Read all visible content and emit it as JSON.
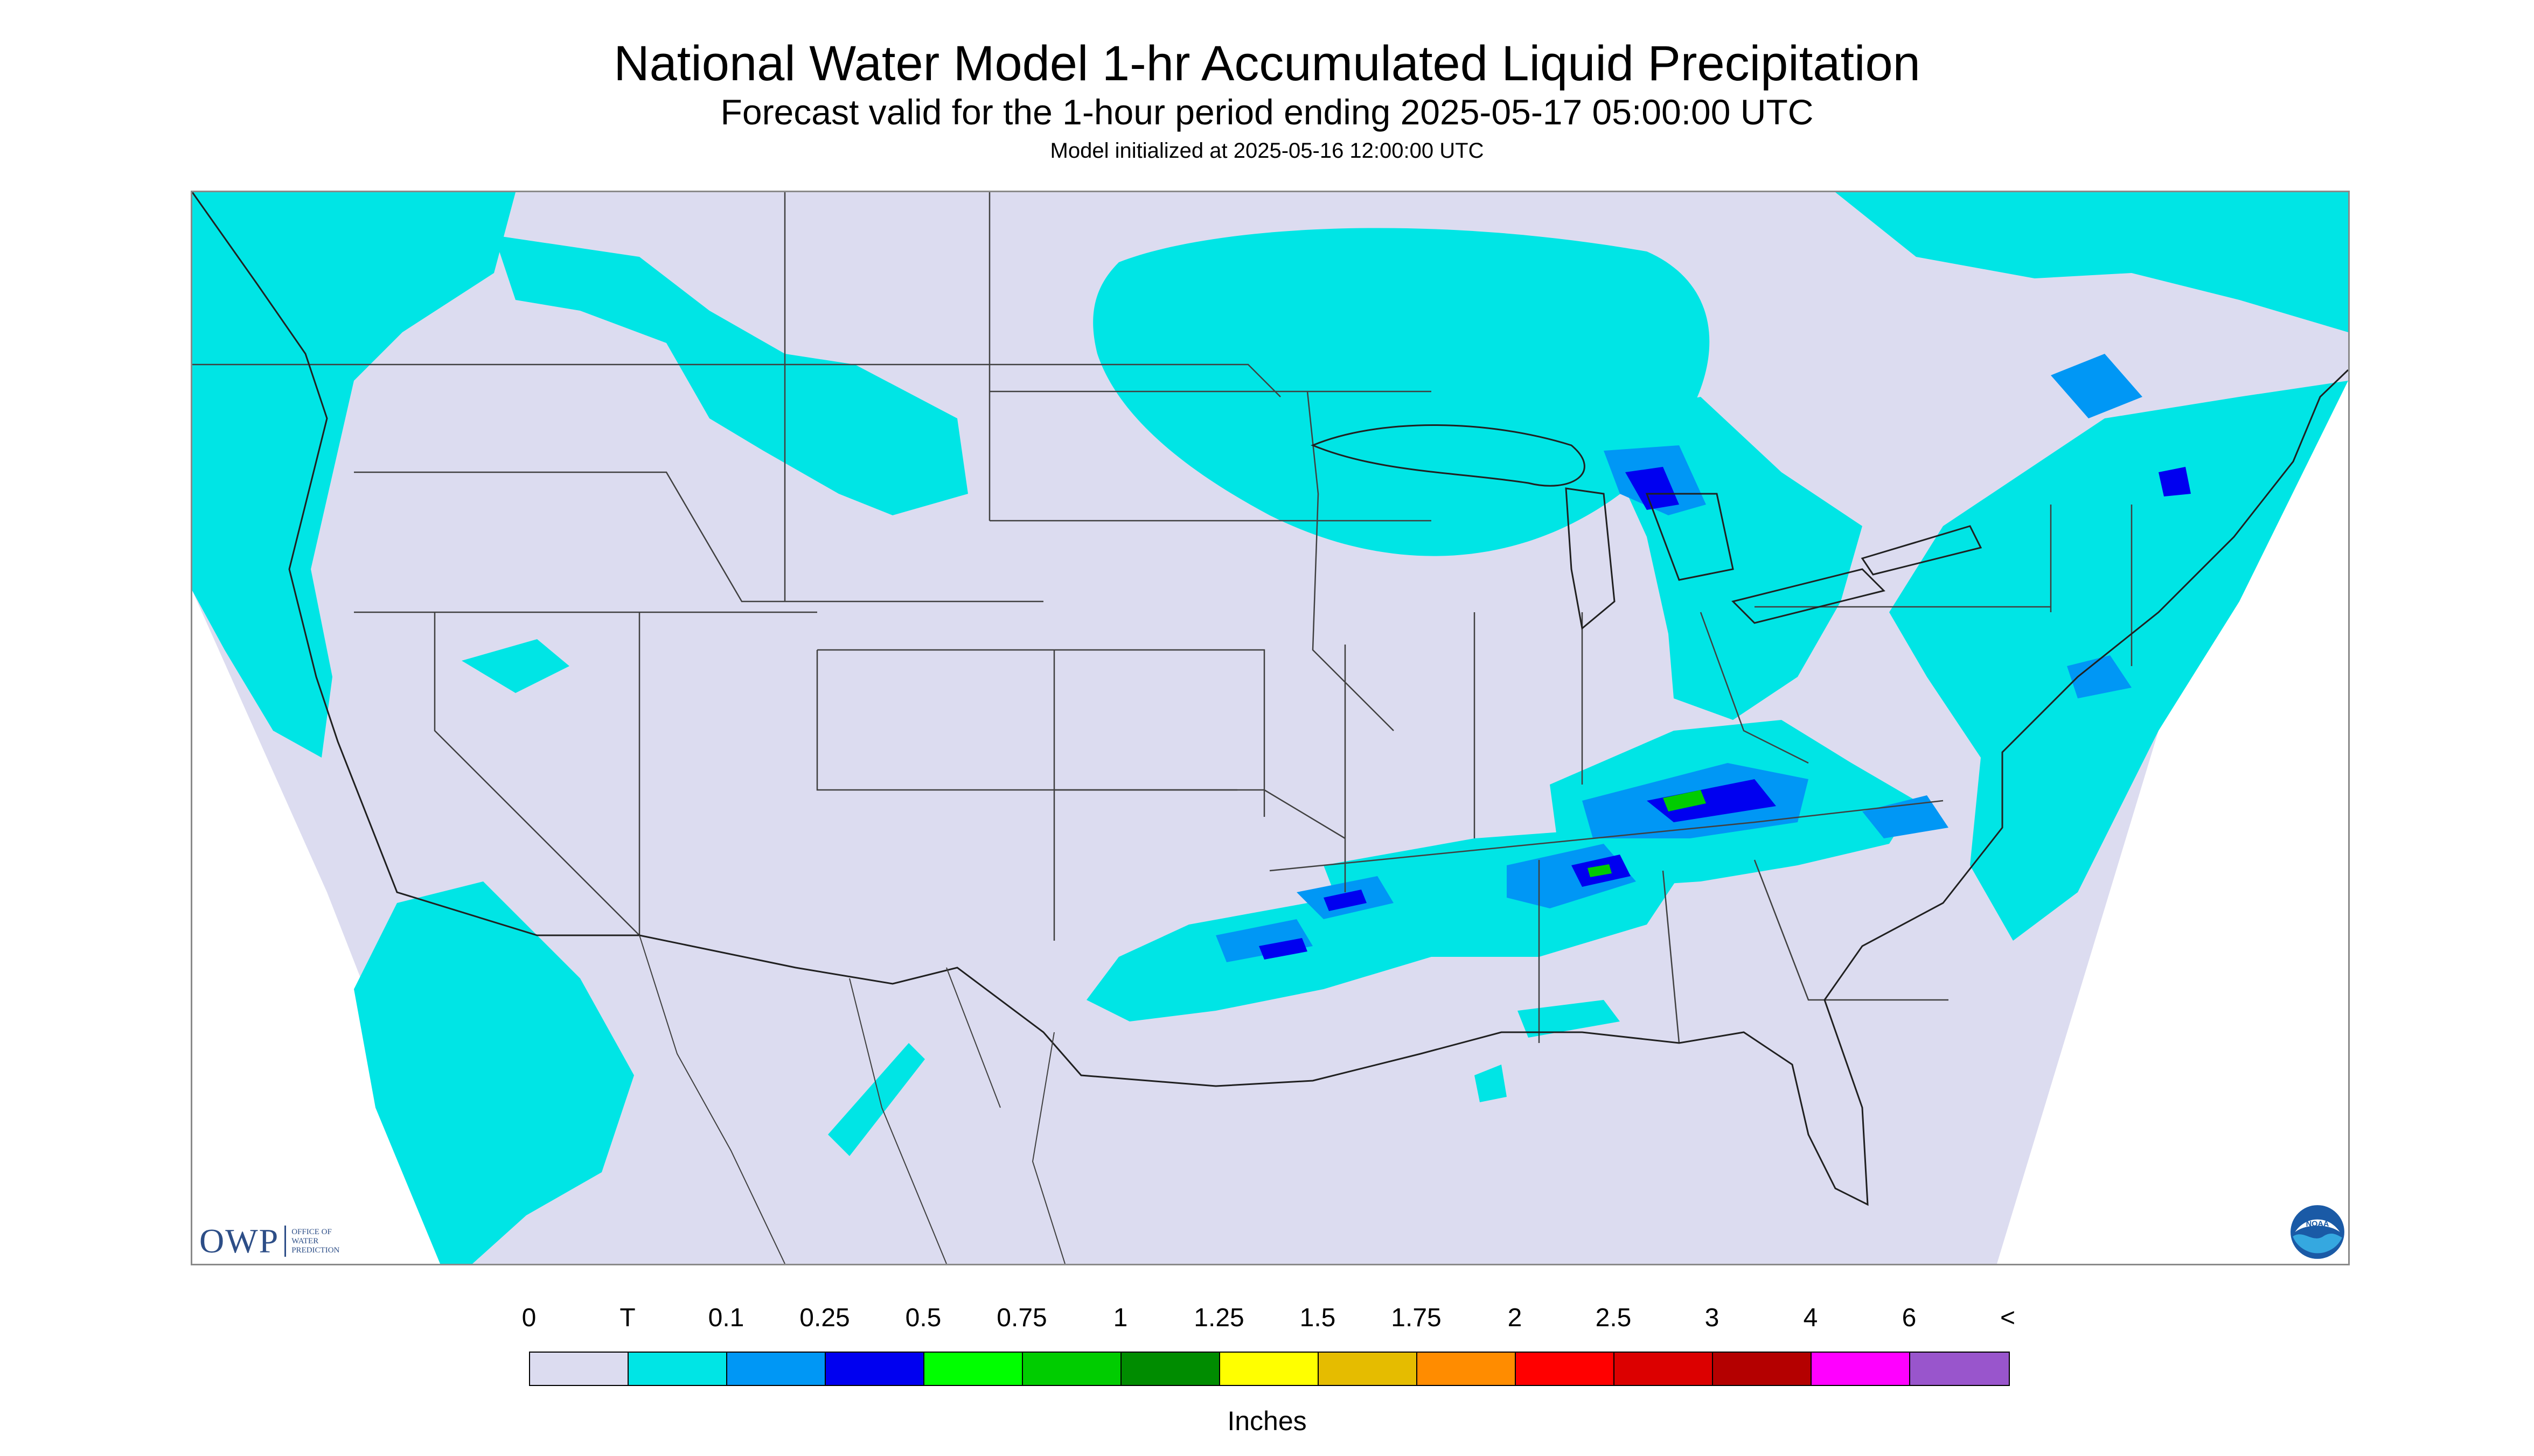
{
  "header": {
    "title": "National Water Model 1-hr Accumulated Liquid Precipitation",
    "subtitle": "Forecast valid for the 1-hour period ending 2025-05-17 05:00:00 UTC",
    "init": "Model initialized at 2025-05-16 12:00:00 UTC"
  },
  "logos": {
    "owp_text": "OWP",
    "owp_sub": [
      "OFFICE OF",
      "WATER",
      "PREDICTION"
    ],
    "noaa_text": "NOAA"
  },
  "legend": {
    "labels": [
      "0",
      "T",
      "0.1",
      "0.25",
      "0.5",
      "0.75",
      "1",
      "1.25",
      "1.5",
      "1.75",
      "2",
      "2.5",
      "3",
      "4",
      "6",
      "<"
    ],
    "colors": [
      "#dcdcf0",
      "#00e5e5",
      "#0097f5",
      "#0000f0",
      "#00ff00",
      "#00cc00",
      "#008c00",
      "#ffff00",
      "#e5bc00",
      "#ff8c00",
      "#ff0000",
      "#dc0000",
      "#b40000",
      "#ff00ff",
      "#9955cc"
    ],
    "units": "Inches"
  },
  "map": {
    "background_color": "#dcdcf0",
    "precip_trace_color": "#00e5e5",
    "precip_light_color": "#0097f5",
    "precip_mod_color": "#0000f0",
    "precip_heavy_color": "#00cc00",
    "border_color": "#404040"
  }
}
